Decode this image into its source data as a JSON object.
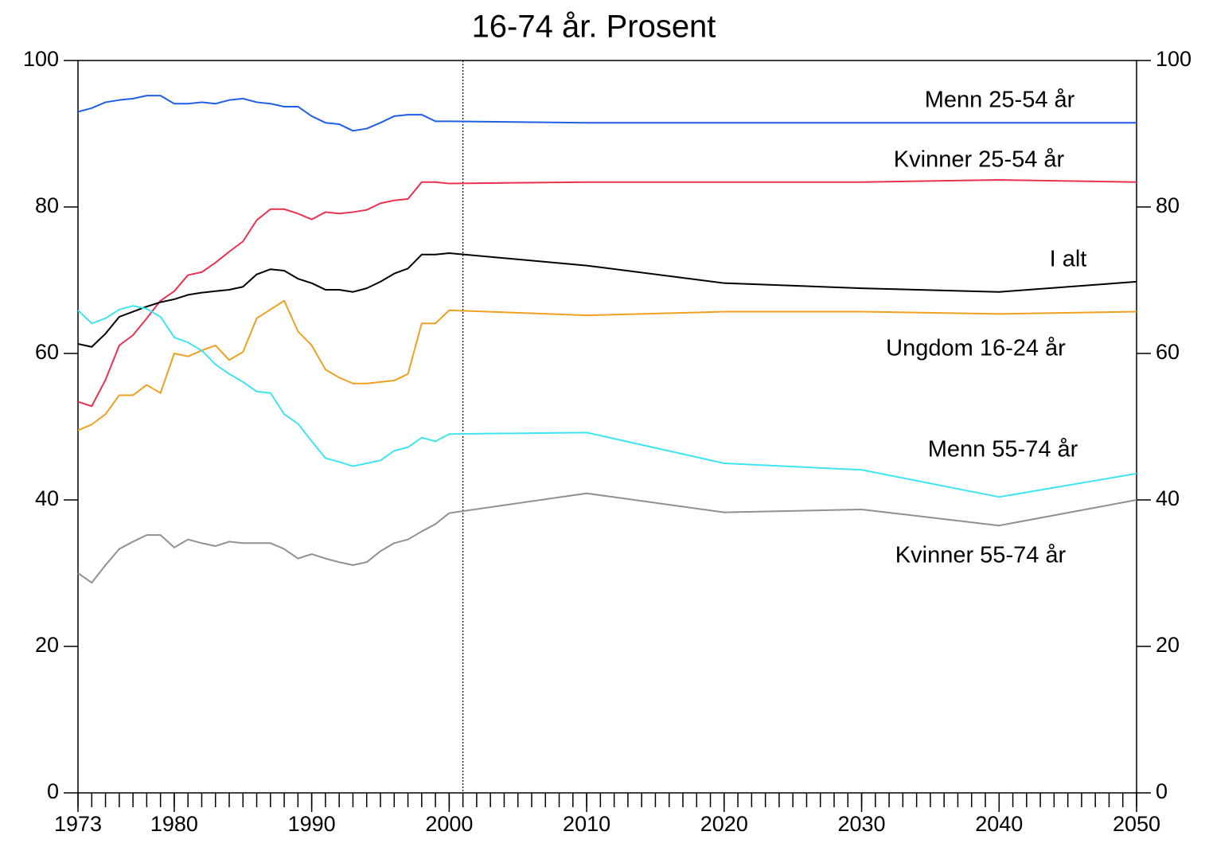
{
  "chart_data": {
    "type": "line",
    "title": "16-74 år. Prosent",
    "x": [
      1973,
      1974,
      1975,
      1976,
      1977,
      1978,
      1979,
      1980,
      1981,
      1982,
      1983,
      1984,
      1985,
      1986,
      1987,
      1988,
      1989,
      1990,
      1991,
      1992,
      1993,
      1994,
      1995,
      1996,
      1997,
      1998,
      1999,
      2000,
      2010,
      2020,
      2030,
      2040,
      2050
    ],
    "xlim": [
      1973,
      2050
    ],
    "xticks": [
      1973,
      1980,
      1990,
      2000,
      2010,
      2020,
      2030,
      2040,
      2050
    ],
    "ylim": [
      0,
      100
    ],
    "yticks": [
      0,
      20,
      40,
      60,
      80,
      100
    ],
    "y2lim": [
      0,
      100
    ],
    "y2ticks": [
      0,
      20,
      40,
      60,
      80,
      100
    ],
    "divider_x": 2001,
    "series": [
      {
        "name": "Menn 25-54 år",
        "color": "#1f5fe6",
        "values": [
          93.0,
          93.5,
          94.3,
          94.6,
          94.8,
          95.2,
          95.2,
          94.1,
          94.1,
          94.3,
          94.1,
          94.6,
          94.8,
          94.3,
          94.1,
          93.7,
          93.7,
          92.4,
          91.5,
          91.3,
          90.4,
          90.7,
          91.5,
          92.4,
          92.6,
          92.6,
          91.7,
          91.7,
          91.5,
          91.5,
          91.5,
          91.5,
          91.5
        ]
      },
      {
        "name": "Kvinner 25-54 år",
        "color": "#e83350",
        "values": [
          53.4,
          52.8,
          56.4,
          61.1,
          62.5,
          64.8,
          67.2,
          68.5,
          70.7,
          71.1,
          72.4,
          73.9,
          75.3,
          78.2,
          79.7,
          79.7,
          79.1,
          78.3,
          79.3,
          79.1,
          79.3,
          79.6,
          80.5,
          80.9,
          81.1,
          83.4,
          83.4,
          83.2,
          83.4,
          83.4,
          83.4,
          83.7,
          83.4
        ]
      },
      {
        "name": "I alt",
        "color": "#000000",
        "values": [
          61.3,
          60.9,
          62.7,
          65.0,
          65.7,
          66.4,
          67.0,
          67.4,
          68.0,
          68.3,
          68.5,
          68.7,
          69.1,
          70.8,
          71.5,
          71.3,
          70.2,
          69.6,
          68.7,
          68.7,
          68.4,
          68.9,
          69.8,
          70.9,
          71.6,
          73.5,
          73.5,
          73.7,
          72.0,
          69.6,
          68.9,
          68.4,
          69.8
        ]
      },
      {
        "name": "Ungdom 16-24 år",
        "color": "#f0a020",
        "values": [
          49.5,
          50.3,
          51.7,
          54.3,
          54.3,
          55.7,
          54.6,
          60.0,
          59.6,
          60.4,
          61.1,
          59.1,
          60.2,
          64.8,
          66.0,
          67.2,
          63.0,
          61.1,
          57.8,
          56.7,
          55.9,
          55.9,
          56.1,
          56.3,
          57.2,
          64.1,
          64.1,
          65.9,
          65.2,
          65.7,
          65.7,
          65.4,
          65.7
        ]
      },
      {
        "name": "Menn 55-74 år",
        "color": "#40e4f0",
        "values": [
          65.9,
          64.1,
          64.8,
          66.0,
          66.5,
          66.1,
          65.0,
          62.2,
          61.5,
          60.4,
          58.5,
          57.2,
          56.1,
          54.8,
          54.6,
          51.7,
          50.4,
          48.0,
          45.7,
          45.2,
          44.6,
          45.0,
          45.4,
          46.7,
          47.2,
          48.5,
          48.0,
          49.0,
          49.2,
          45.0,
          44.1,
          40.4,
          43.6
        ]
      },
      {
        "name": "Kvinner 55-74 år",
        "color": "#909090",
        "values": [
          30.0,
          28.7,
          31.1,
          33.3,
          34.3,
          35.2,
          35.2,
          33.5,
          34.6,
          34.1,
          33.7,
          34.3,
          34.1,
          34.1,
          34.1,
          33.3,
          32.0,
          32.6,
          32.0,
          31.5,
          31.1,
          31.5,
          33.0,
          34.1,
          34.6,
          35.7,
          36.7,
          38.2,
          40.9,
          38.3,
          38.7,
          36.5,
          40.0
        ]
      }
    ]
  }
}
